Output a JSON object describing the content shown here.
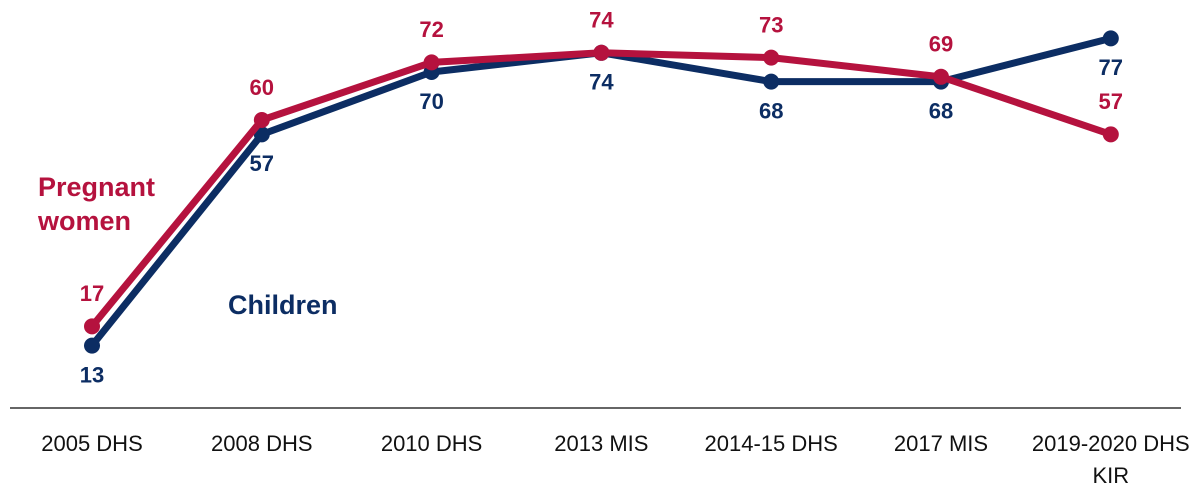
{
  "chart_data": {
    "type": "line",
    "categories": [
      "2005 DHS",
      "2008 DHS",
      "2010 DHS",
      "2013 MIS",
      "2014-15 DHS",
      "2017 MIS",
      "2019-2020 DHS KIR"
    ],
    "series": [
      {
        "name": "Children",
        "color": "#0c2d63",
        "values": [
          13,
          57,
          70,
          74,
          68,
          68,
          77
        ]
      },
      {
        "name": "Pregnant women",
        "color": "#b5123e",
        "values": [
          17,
          60,
          72,
          74,
          73,
          69,
          57
        ]
      }
    ],
    "ylim": [
      0,
      85
    ]
  }
}
